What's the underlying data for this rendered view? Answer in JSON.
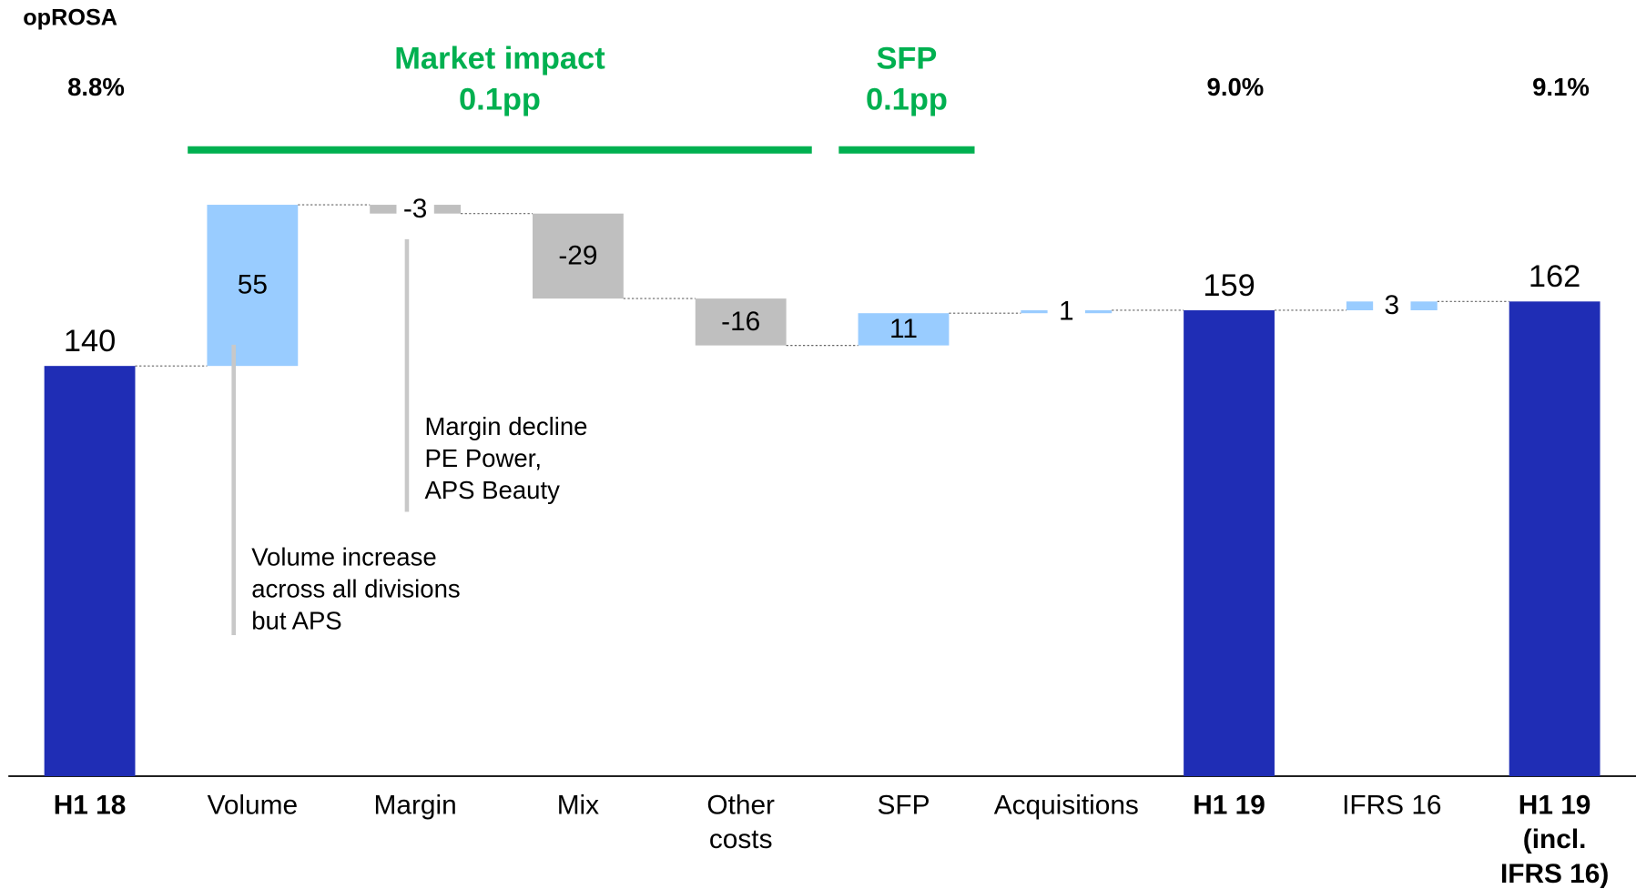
{
  "chart_data": {
    "type": "waterfall",
    "axis_title": "opROSA",
    "categories": [
      "H1 18",
      "Volume",
      "Margin",
      "Mix",
      "Other costs",
      "SFP",
      "Acquisitions",
      "H1 19",
      "IFRS 16",
      "H1 19 (incl. IFRS 16)"
    ],
    "values": [
      140,
      55,
      -3,
      -29,
      -16,
      11,
      1,
      159,
      3,
      162
    ],
    "measures": [
      "absolute",
      "relative",
      "relative",
      "relative",
      "relative",
      "relative",
      "relative",
      "absolute",
      "relative",
      "absolute"
    ],
    "colors": {
      "absolute": "#1f2db5",
      "increase": "#99ccff",
      "decrease": "#bfbfbf"
    },
    "ylim": [
      0,
      200
    ],
    "oprosa": {
      "values": [
        8.8,
        null,
        null,
        null,
        null,
        null,
        null,
        9.0,
        null,
        9.1
      ],
      "value_labels": [
        "8.8%",
        null,
        null,
        null,
        null,
        null,
        null,
        "9.0%",
        null,
        "9.1%"
      ]
    },
    "groups": [
      {
        "label": "Market impact",
        "value": 0.1,
        "value_label": "0.1pp",
        "span": [
          "Volume",
          "Other costs"
        ],
        "color": "#00b050"
      },
      {
        "label": "SFP",
        "value": 0.1,
        "value_label": "0.1pp",
        "span": [
          "SFP",
          "SFP"
        ],
        "color": "#00b050"
      }
    ],
    "annotations": [
      {
        "category": "Volume",
        "lines": [
          "Volume increase",
          "across all divisions",
          "but APS"
        ]
      },
      {
        "category": "Margin",
        "lines": [
          "Margin decline",
          "PE Power,",
          "APS Beauty"
        ]
      }
    ]
  }
}
